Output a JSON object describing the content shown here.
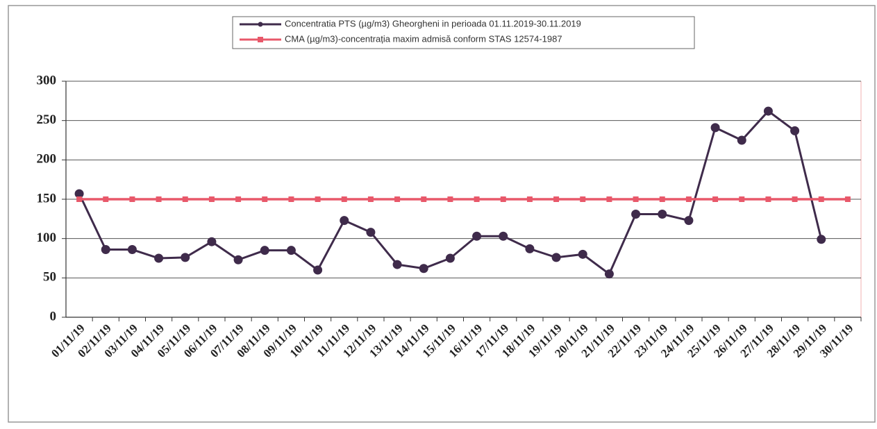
{
  "chart_data": {
    "type": "line",
    "categories": [
      "01/11/19",
      "02/11/19",
      "03/11/19",
      "04/11/19",
      "05/11/19",
      "06/11/19",
      "07/11/19",
      "08/11/19",
      "09/11/19",
      "10/11/19",
      "11/11/19",
      "12/11/19",
      "13/11/19",
      "14/11/19",
      "15/11/19",
      "16/11/19",
      "17/11/19",
      "18/11/19",
      "19/11/19",
      "20/11/19",
      "21/11/19",
      "22/11/19",
      "23/11/19",
      "24/11/19",
      "25/11/19",
      "26/11/19",
      "27/11/19",
      "28/11/19",
      "29/11/19",
      "30/11/19"
    ],
    "series": [
      {
        "name": "Concentratia PTS (µg/m3) Gheorgheni in perioada 01.11.2019-30.11.2019",
        "color": "#3f2b4b",
        "marker": "circle",
        "values": [
          157,
          86,
          86,
          75,
          76,
          96,
          73,
          85,
          85,
          60,
          123,
          108,
          67,
          62,
          75,
          103,
          103,
          87,
          76,
          80,
          55,
          131,
          131,
          123,
          241,
          225,
          262,
          237,
          99,
          null
        ]
      },
      {
        "name": "CMA (µg/m3)-concentrația maxim admisă conform STAS 12574-1987",
        "color": "#e8586a",
        "marker": "square",
        "values": [
          150,
          150,
          150,
          150,
          150,
          150,
          150,
          150,
          150,
          150,
          150,
          150,
          150,
          150,
          150,
          150,
          150,
          150,
          150,
          150,
          150,
          150,
          150,
          150,
          150,
          150,
          150,
          150,
          150,
          150
        ]
      }
    ],
    "ylim": [
      0,
      300
    ],
    "yticks": [
      0,
      50,
      100,
      150,
      200,
      250,
      300
    ],
    "grid": true,
    "legend": "top"
  }
}
